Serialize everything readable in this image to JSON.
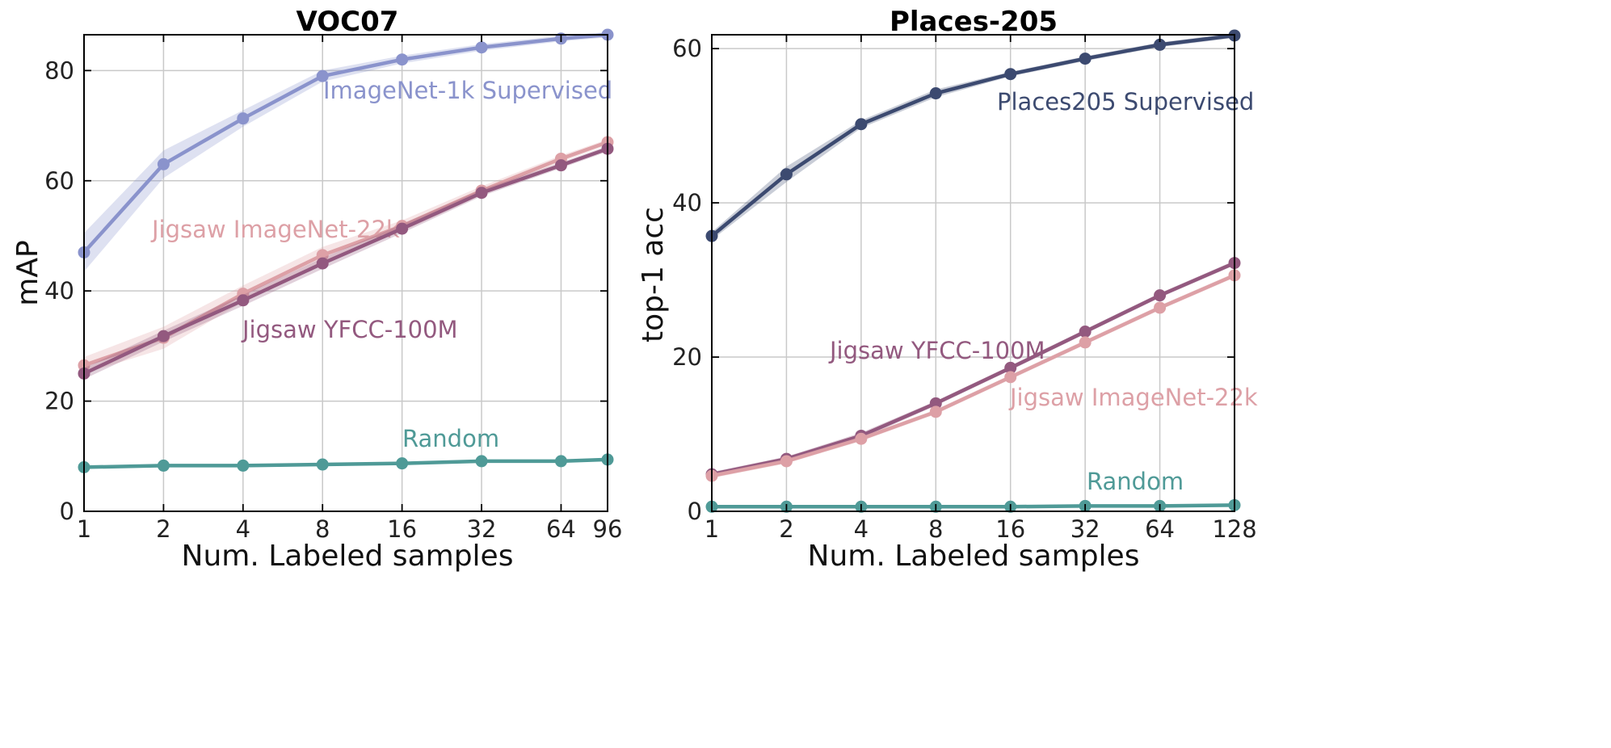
{
  "chart_data": [
    {
      "type": "line",
      "title": "VOC07",
      "xlabel": "Num. Labeled samples",
      "ylabel": "mAP",
      "x_scale": "log2",
      "xlim": [
        1,
        96
      ],
      "ylim": [
        0,
        86.5
      ],
      "x": [
        1,
        2,
        4,
        8,
        16,
        32,
        64,
        96
      ],
      "xticks": [
        1,
        2,
        4,
        8,
        16,
        32,
        64,
        96
      ],
      "xtick_labels": [
        "1",
        "2",
        "4",
        "8",
        "16",
        "32",
        "64",
        "96"
      ],
      "yticks": [
        0,
        20,
        40,
        60,
        80
      ],
      "ytick_labels": [
        "0",
        "20",
        "40",
        "60",
        "80"
      ],
      "grid": true,
      "series": [
        {
          "name": "ImageNet-1k Supervised",
          "color": "#8a93cc",
          "values": [
            47,
            63,
            71.3,
            79,
            82,
            84.2,
            85.8,
            86.5
          ],
          "band": [
            3.5,
            2.5,
            1.5,
            1,
            0.7,
            0.6,
            0.5,
            0.5
          ]
        },
        {
          "name": "Jigsaw ImageNet-22k",
          "color": "#dda0a6",
          "values": [
            26.5,
            31.5,
            39.5,
            46.5,
            51.8,
            58.2,
            64,
            67
          ],
          "band": [
            1.5,
            2,
            1.5,
            1.5,
            1,
            0.8,
            0.6,
            0.5
          ]
        },
        {
          "name": "Jigsaw YFCC-100M",
          "color": "#93597f",
          "values": [
            25,
            31.8,
            38.3,
            45,
            51.3,
            57.8,
            62.8,
            65.8
          ],
          "band": [
            1,
            1,
            1,
            1,
            0.8,
            0.6,
            0.5,
            0.5
          ]
        },
        {
          "name": "Random",
          "color": "#4f9a97",
          "values": [
            8,
            8.3,
            8.3,
            8.5,
            8.7,
            9.1,
            9.1,
            9.4
          ],
          "band": [
            0.2,
            0.2,
            0.2,
            0.2,
            0.2,
            0.2,
            0.2,
            0.2
          ]
        }
      ]
    },
    {
      "type": "line",
      "title": "Places-205",
      "xlabel": "Num. Labeled samples",
      "ylabel": "top-1 acc",
      "x_scale": "log2",
      "xlim": [
        1,
        128
      ],
      "ylim": [
        0,
        61.8
      ],
      "x": [
        1,
        2,
        4,
        8,
        16,
        32,
        64,
        128
      ],
      "xticks": [
        1,
        2,
        4,
        8,
        16,
        32,
        64,
        128
      ],
      "xtick_labels": [
        "1",
        "2",
        "4",
        "8",
        "16",
        "32",
        "64",
        "128"
      ],
      "yticks": [
        0,
        20,
        40,
        60
      ],
      "ytick_labels": [
        "0",
        "20",
        "40",
        "60"
      ],
      "grid": true,
      "series": [
        {
          "name": "Places205 Supervised",
          "color": "#3c4a70",
          "values": [
            35.7,
            43.7,
            50.2,
            54.2,
            56.7,
            58.7,
            60.5,
            61.7
          ],
          "band": [
            0.5,
            1,
            0.5,
            0.5,
            0.3,
            0.3,
            0.3,
            0.3
          ]
        },
        {
          "name": "Jigsaw YFCC-100M",
          "color": "#93597f",
          "values": [
            4.8,
            6.8,
            9.8,
            14,
            18.6,
            23.3,
            28,
            32.2
          ],
          "band": [
            0.3,
            0.3,
            0.4,
            0.3,
            0.3,
            0.3,
            0.3,
            0.3
          ]
        },
        {
          "name": "Jigsaw ImageNet-22k",
          "color": "#dda0a6",
          "values": [
            4.6,
            6.5,
            9.4,
            12.9,
            17.4,
            21.9,
            26.4,
            30.6
          ],
          "band": [
            0.3,
            0.3,
            0.3,
            0.3,
            0.3,
            0.3,
            0.3,
            0.3
          ]
        },
        {
          "name": "Random",
          "color": "#4f9a97",
          "values": [
            0.6,
            0.6,
            0.6,
            0.6,
            0.6,
            0.7,
            0.7,
            0.8
          ],
          "band": [
            0.1,
            0.1,
            0.1,
            0.1,
            0.1,
            0.1,
            0.1,
            0.1
          ]
        }
      ]
    }
  ]
}
